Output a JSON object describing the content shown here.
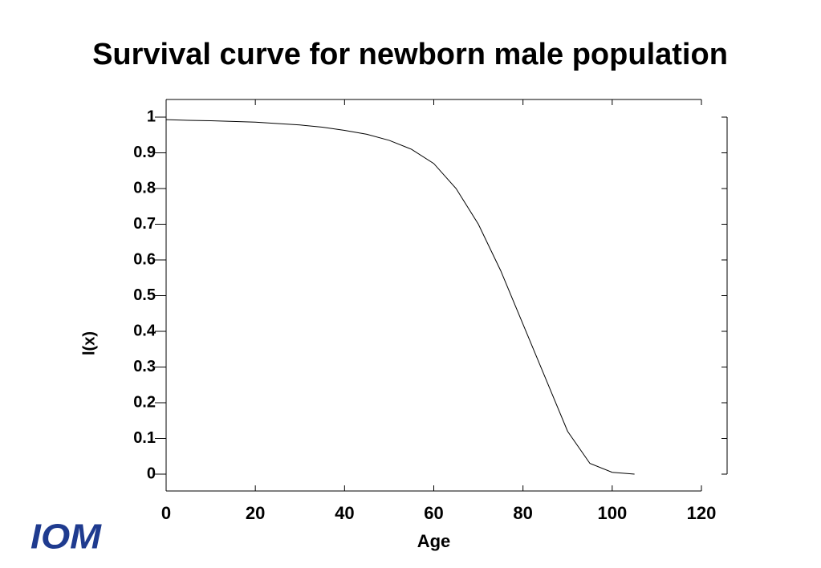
{
  "chart_data": {
    "type": "line",
    "title": "Survival curve for newborn male population",
    "x_label": "Age",
    "y_label": "l(x)",
    "x": [
      0,
      5,
      10,
      15,
      20,
      25,
      30,
      35,
      40,
      45,
      50,
      55,
      60,
      65,
      70,
      75,
      80,
      85,
      90,
      95,
      100,
      105
    ],
    "series": [
      {
        "name": "l(x)",
        "color": "#000000",
        "values": [
          0.993,
          0.991,
          0.99,
          0.988,
          0.986,
          0.982,
          0.978,
          0.972,
          0.963,
          0.952,
          0.935,
          0.91,
          0.87,
          0.8,
          0.7,
          0.57,
          0.42,
          0.27,
          0.12,
          0.03,
          0.005,
          0
        ]
      }
    ],
    "xlim": [
      0,
      120
    ],
    "xticks": [
      0,
      20,
      40,
      60,
      80,
      100,
      120
    ],
    "ylim": [
      0,
      1
    ],
    "yticks": [
      0,
      0.1,
      0.2,
      0.3,
      0.4,
      0.5,
      0.6,
      0.7,
      0.8,
      0.9,
      1
    ]
  },
  "logo": {
    "text": "IOM"
  }
}
